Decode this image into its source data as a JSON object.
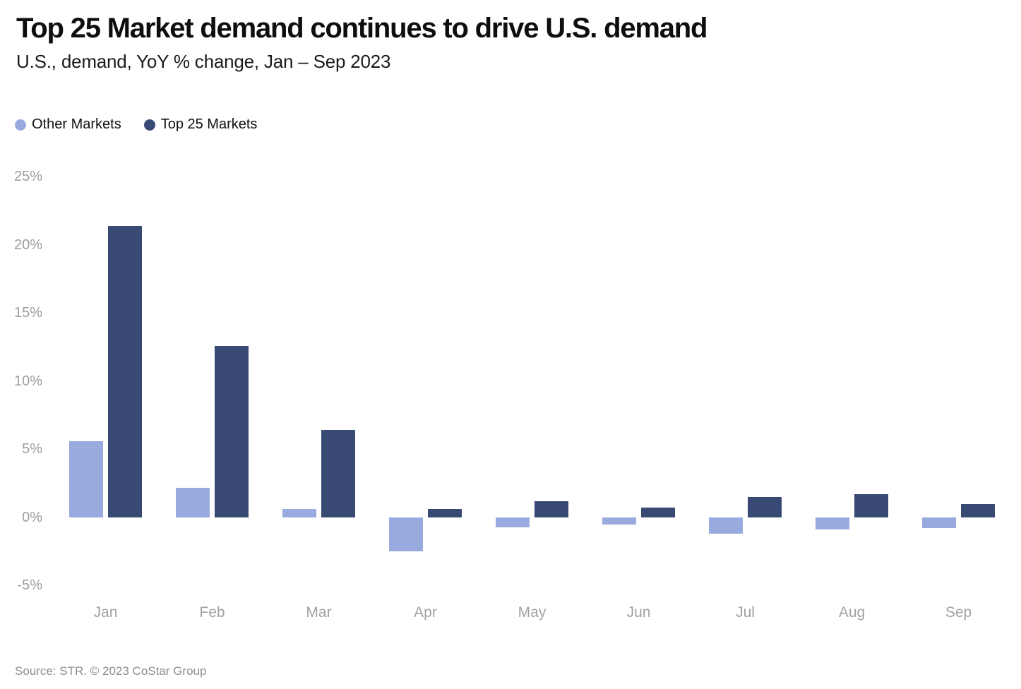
{
  "header": {
    "title": "Top 25 Market demand continues to drive U.S. demand",
    "subtitle": "U.S., demand, YoY % change, Jan – Sep 2023"
  },
  "legend": {
    "items": [
      {
        "label": "Other Markets",
        "color": "#99ABDE"
      },
      {
        "label": "Top 25 Markets",
        "color": "#384A74"
      }
    ]
  },
  "chart_data": {
    "type": "bar",
    "title": "Top 25 Market demand continues to drive U.S. demand",
    "subtitle": "U.S., demand, YoY % change, Jan – Sep 2023",
    "categories": [
      "Jan",
      "Feb",
      "Mar",
      "Apr",
      "May",
      "Jun",
      "Jul",
      "Aug",
      "Sep"
    ],
    "series": [
      {
        "name": "Other Markets",
        "color": "#99ABDE",
        "values": [
          5.6,
          2.2,
          0.6,
          -2.5,
          -0.7,
          -0.5,
          -1.2,
          -0.9,
          -0.8
        ]
      },
      {
        "name": "Top 25 Markets",
        "color": "#384A74",
        "values": [
          21.4,
          12.6,
          6.4,
          0.6,
          1.2,
          0.7,
          1.5,
          1.7,
          1.0
        ]
      }
    ],
    "xlabel": "",
    "ylabel": "",
    "ylim": [
      -5,
      25
    ],
    "yticks": [
      25,
      20,
      15,
      10,
      5,
      0,
      -5
    ],
    "ytick_labels": [
      "25%",
      "20%",
      "15%",
      "10%",
      "5%",
      "0%",
      "-5%"
    ],
    "grid": false,
    "legend_position": "top-left"
  },
  "footer": {
    "source": "Source: STR. © 2023 CoStar Group"
  }
}
